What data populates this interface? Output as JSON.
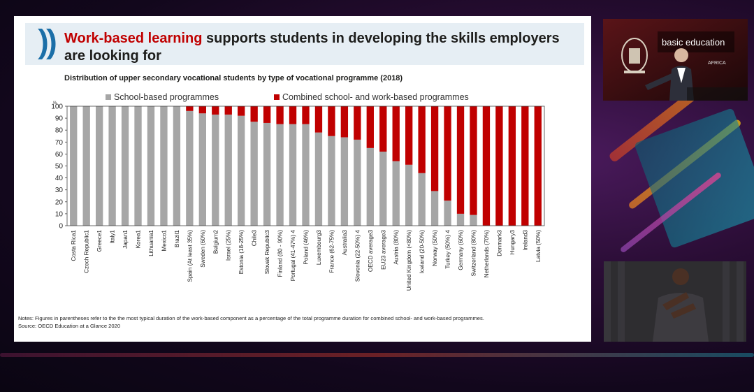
{
  "slide": {
    "title_highlight": "Work-based learning",
    "title_rest": " supports students in developing the skills employers are looking for",
    "notes": "Notes: Figures in parentheses refer to the the most typical duration of the work-based component as a percentage of the total programme duration for combined school- and work-based programmes.",
    "source": "Source: OECD Education at a Glance 2020"
  },
  "chart_data": {
    "type": "bar",
    "stacked": true,
    "subtitle": "Distribution of upper secondary vocational students by type of vocational programme (2018)",
    "ylabel": "%",
    "ylim": [
      0,
      100
    ],
    "yticks": [
      0,
      10,
      20,
      30,
      40,
      50,
      60,
      70,
      80,
      90,
      100
    ],
    "grid": false,
    "legend_position": "top",
    "colors": {
      "school": "#a6a6a6",
      "combined": "#c00000"
    },
    "categories": [
      "Costa Rica1",
      "Czech Republic1",
      "Greece1",
      "Italy1",
      "Japan1",
      "Korea1",
      "Lithuania1",
      "Mexico1",
      "Brazil1",
      "Spain (At least 35%)",
      "Sweden (60%)",
      "Belgium2",
      "Israel (25%)",
      "Estonia (18-25%)",
      "Chile3",
      "Slovak Republic3",
      "Finland (80 - 90%)",
      "Portugal (41-47%) 4",
      "Poland (46%)",
      "Luxembourg3",
      "France (62-75%)",
      "Australia3",
      "Slovenia (22-50%) 4",
      "OECD average3",
      "EU23 average3",
      "Austria (80%)",
      "United Kingdom (<80%)",
      "Iceland (20-50%)",
      "Norway (50%)",
      "Turkey (50%) 4",
      "Germany (60%)",
      "Switzerland (80%)",
      "Netherlands (70%)",
      "Denmark3",
      "Hungary3",
      "Ireland3",
      "Latvia (50%)"
    ],
    "series": [
      {
        "name": "School-based programmes",
        "values": [
          100,
          100,
          100,
          100,
          100,
          100,
          100,
          100,
          100,
          96,
          94,
          93,
          93,
          92,
          87,
          86,
          85,
          85,
          85,
          78,
          75,
          74,
          72,
          65,
          62,
          54,
          51,
          44,
          29,
          21,
          10,
          9,
          0,
          0,
          0,
          0,
          0
        ]
      },
      {
        "name": "Combined school- and work-based programmes",
        "values": [
          0,
          0,
          0,
          0,
          0,
          0,
          0,
          0,
          0,
          4,
          6,
          7,
          7,
          8,
          13,
          14,
          15,
          15,
          15,
          22,
          25,
          26,
          28,
          35,
          38,
          46,
          49,
          56,
          71,
          79,
          90,
          91,
          100,
          100,
          100,
          100,
          100
        ]
      }
    ]
  },
  "speaker_video": {
    "banner_text": "basic education",
    "banner_sub": "AFRICA"
  }
}
